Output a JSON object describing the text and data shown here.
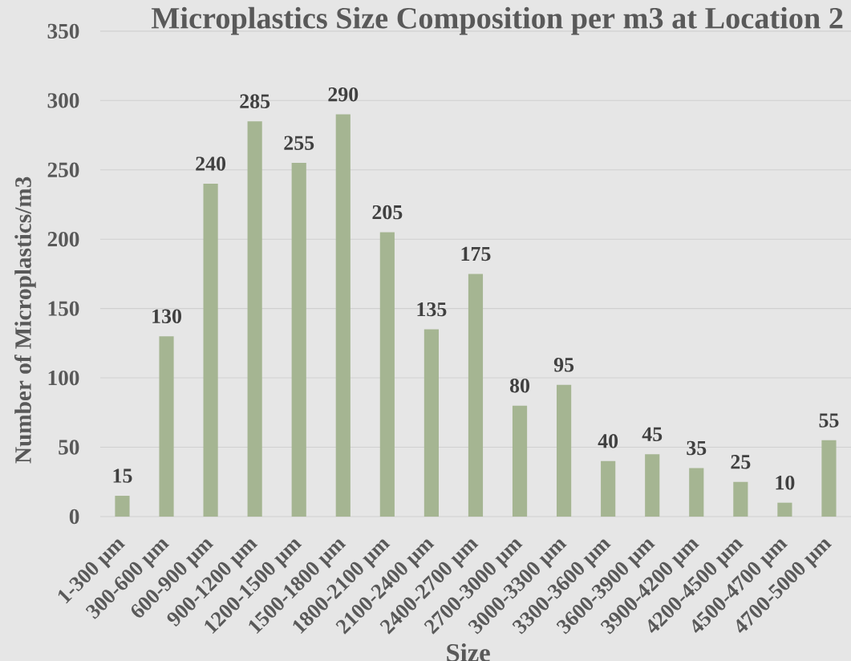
{
  "chart_data": {
    "type": "bar",
    "title": "Microplastics Size Composition per m3 at Location 2",
    "xlabel": "Size",
    "ylabel": "Number of Microplastics/m3",
    "categories": [
      "1-300 µm",
      "300-600 µm",
      "600-900 µm",
      "900-1200 µm",
      "1200-1500 µm",
      "1500-1800 µm",
      "1800-2100 µm",
      "2100-2400 µm",
      "2400-2700 µm",
      "2700-3000 µm",
      "3000-3300 µm",
      "3300-3600 µm",
      "3600-3900 µm",
      "3900-4200 µm",
      "4200-4500 µm",
      "4500-4700 µm",
      "4700-5000 µm"
    ],
    "values": [
      15,
      130,
      240,
      285,
      255,
      290,
      205,
      135,
      175,
      80,
      95,
      40,
      45,
      35,
      25,
      10,
      55
    ],
    "color": "#a5b592",
    "ylim": [
      0,
      350
    ],
    "yticks": [
      0,
      50,
      100,
      150,
      200,
      250,
      300,
      350
    ],
    "grid": "y",
    "data_labels": true
  }
}
